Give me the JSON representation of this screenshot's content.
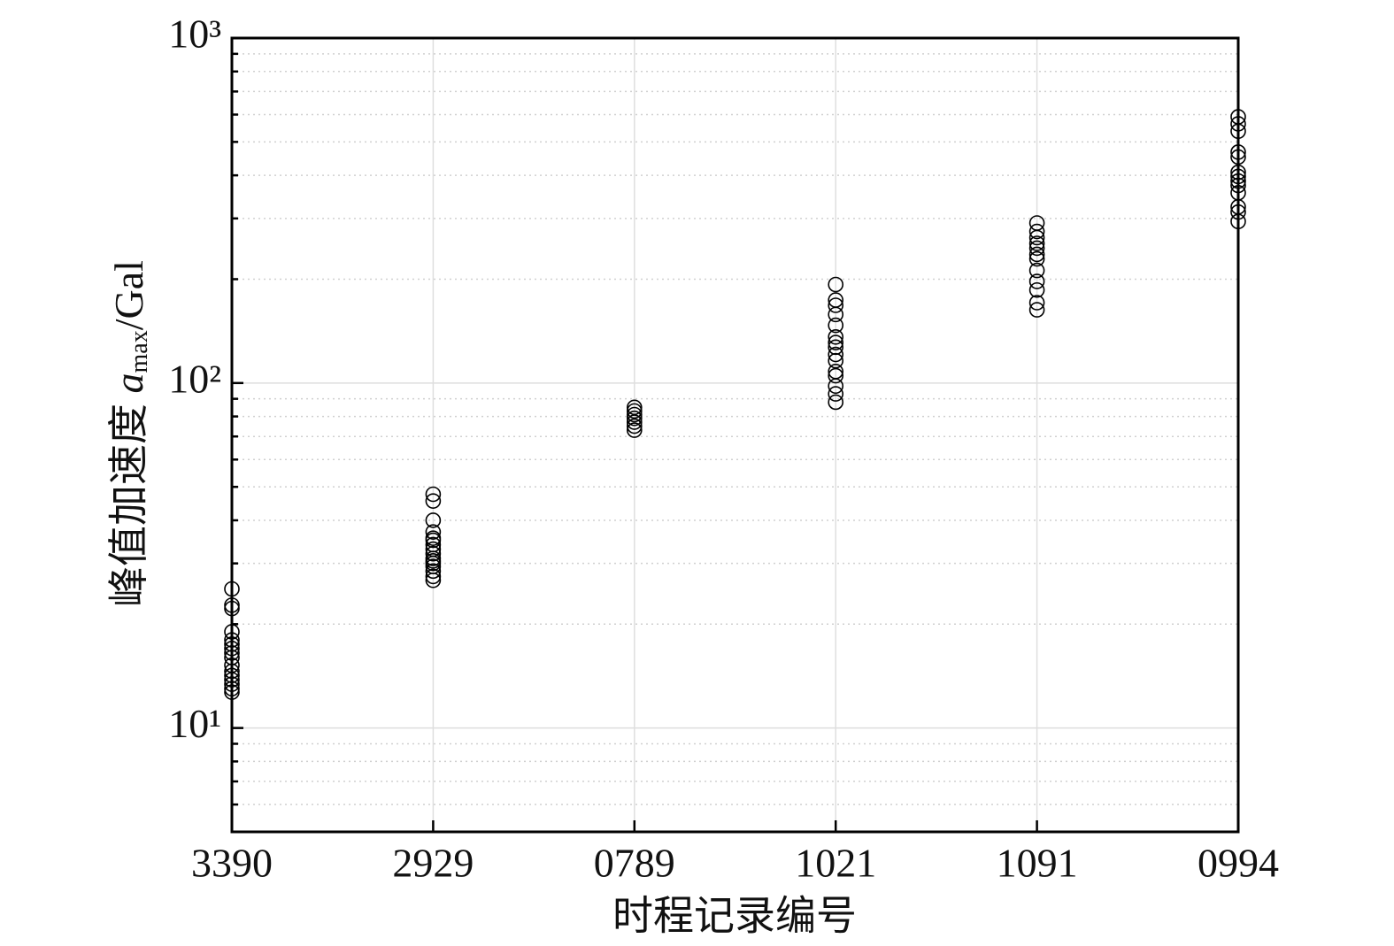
{
  "chart_data": {
    "type": "scatter",
    "x_label": "时程记录编号",
    "y_label": {
      "text": "峰值加速度 ",
      "symbol": "a",
      "subscript": "max",
      "unit": "/Gal"
    },
    "categories": [
      "3390",
      "2929",
      "0789",
      "1021",
      "1091",
      "0994"
    ],
    "values": [
      [
        25.3,
        22.7,
        22.2,
        19.0,
        18.0,
        17.5,
        17.0,
        16.5,
        16.0,
        15.2,
        14.6,
        14.2,
        13.8,
        13.4,
        13.0,
        12.7
      ],
      [
        47.6,
        45.5,
        40,
        37,
        35.5,
        35,
        34,
        33,
        32,
        31,
        30.5,
        30,
        29.4,
        28.5,
        27.5,
        26.8
      ],
      [
        85,
        83,
        81,
        79,
        77,
        75,
        73
      ],
      [
        193,
        174,
        168,
        158,
        147,
        136,
        131,
        127,
        121,
        116,
        108,
        105,
        98,
        93,
        88
      ],
      [
        291,
        275,
        264,
        254,
        246,
        236,
        229,
        212,
        197,
        186,
        171,
        163
      ],
      [
        591,
        564,
        537,
        467,
        452,
        408,
        397,
        385,
        374,
        356,
        324,
        313,
        294
      ]
    ],
    "color": "#000000",
    "log_y": true,
    "ylim": [
      5,
      1000
    ],
    "yticks": [
      {
        "value": 10,
        "label": "10¹"
      },
      {
        "value": 100,
        "label": "10²"
      },
      {
        "value": 1000,
        "label": "10³"
      }
    ],
    "yminor": [
      6,
      7,
      8,
      9,
      20,
      30,
      40,
      50,
      60,
      70,
      80,
      90,
      200,
      300,
      400,
      500,
      600,
      700,
      800,
      900
    ],
    "grid": true
  }
}
